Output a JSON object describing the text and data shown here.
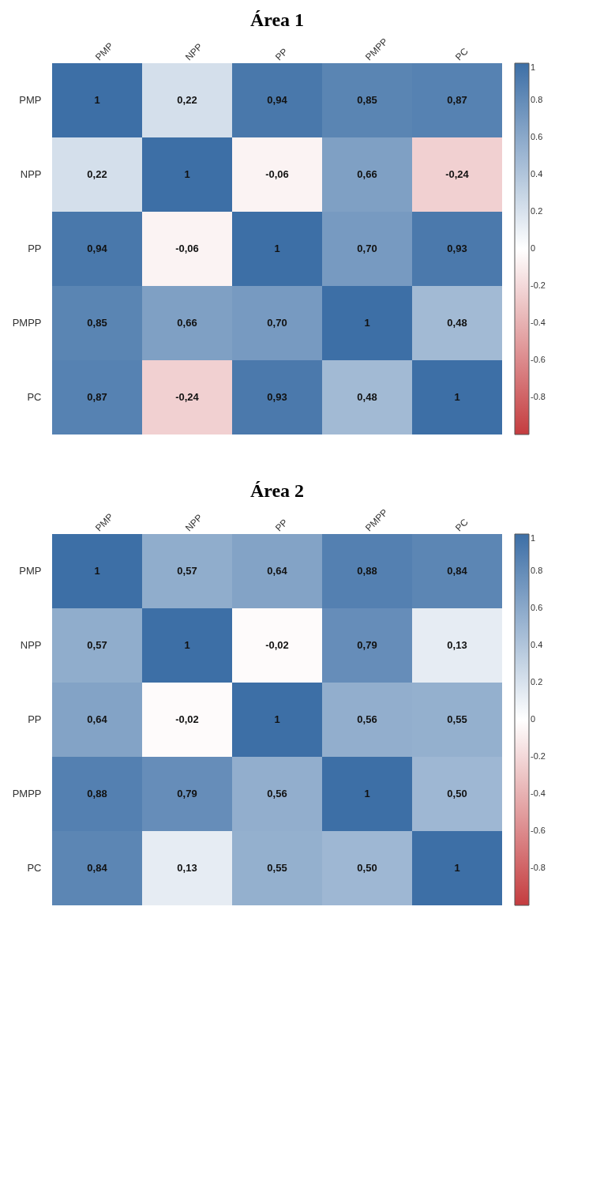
{
  "chart_data": [
    {
      "type": "heatmap",
      "title": "Área 1",
      "categories": [
        "PMP",
        "NPP",
        "PP",
        "PMPP",
        "PC"
      ],
      "y_categories": [
        "PMP",
        "NPP",
        "PP",
        "PMPP",
        "PC"
      ],
      "cells": [
        [
          1,
          0.22,
          0.94,
          0.85,
          0.87
        ],
        [
          0.22,
          1,
          -0.06,
          0.66,
          -0.24
        ],
        [
          0.94,
          -0.06,
          1,
          0.7,
          0.93
        ],
        [
          0.85,
          0.66,
          0.7,
          1,
          0.48
        ],
        [
          0.87,
          -0.24,
          0.93,
          0.48,
          1
        ]
      ],
      "cell_labels": [
        [
          "1",
          "0,22",
          "0,94",
          "0,85",
          "0,87"
        ],
        [
          "0,22",
          "1",
          "-0,06",
          "0,66",
          "-0,24"
        ],
        [
          "0,94",
          "-0,06",
          "1",
          "0,70",
          "0,93"
        ],
        [
          "0,85",
          "0,66",
          "0,70",
          "1",
          "0,48"
        ],
        [
          "0,87",
          "-0,24",
          "0,93",
          "0,48",
          "1"
        ]
      ],
      "clim": [
        -1,
        1
      ],
      "cticks": [
        {
          "value": -1,
          "label": null
        },
        -0.8,
        -0.6,
        -0.4,
        -0.2,
        0,
        0.2,
        0.4,
        0.6,
        0.8,
        1
      ]
    },
    {
      "type": "heatmap",
      "title": "Área 2",
      "categories": [
        "PMP",
        "NPP",
        "PP",
        "PMPP",
        "PC"
      ],
      "y_categories": [
        "PMP",
        "NPP",
        "PP",
        "PMPP",
        "PC"
      ],
      "cells": [
        [
          1,
          0.57,
          0.64,
          0.88,
          0.84
        ],
        [
          0.57,
          1,
          -0.02,
          0.79,
          0.13
        ],
        [
          0.64,
          -0.02,
          1,
          0.56,
          0.55
        ],
        [
          0.88,
          0.79,
          0.56,
          1,
          0.5
        ],
        [
          0.84,
          0.13,
          0.55,
          0.5,
          1
        ]
      ],
      "cell_labels": [
        [
          "1",
          "0,57",
          "0,64",
          "0,88",
          "0,84"
        ],
        [
          "0,57",
          "1",
          "-0,02",
          "0,79",
          "0,13"
        ],
        [
          "0,64",
          "-0,02",
          "1",
          "0,56",
          "0,55"
        ],
        [
          "0,88",
          "0,79",
          "0,56",
          "1",
          "0,50"
        ],
        [
          "0,84",
          "0,13",
          "0,55",
          "0,50",
          "1"
        ]
      ],
      "clim": [
        -1,
        1
      ],
      "cticks": [
        {
          "value": -1,
          "label": null
        },
        -0.8,
        -0.6,
        -0.4,
        -0.2,
        0,
        0.2,
        0.4,
        0.6,
        0.8,
        1
      ]
    }
  ]
}
